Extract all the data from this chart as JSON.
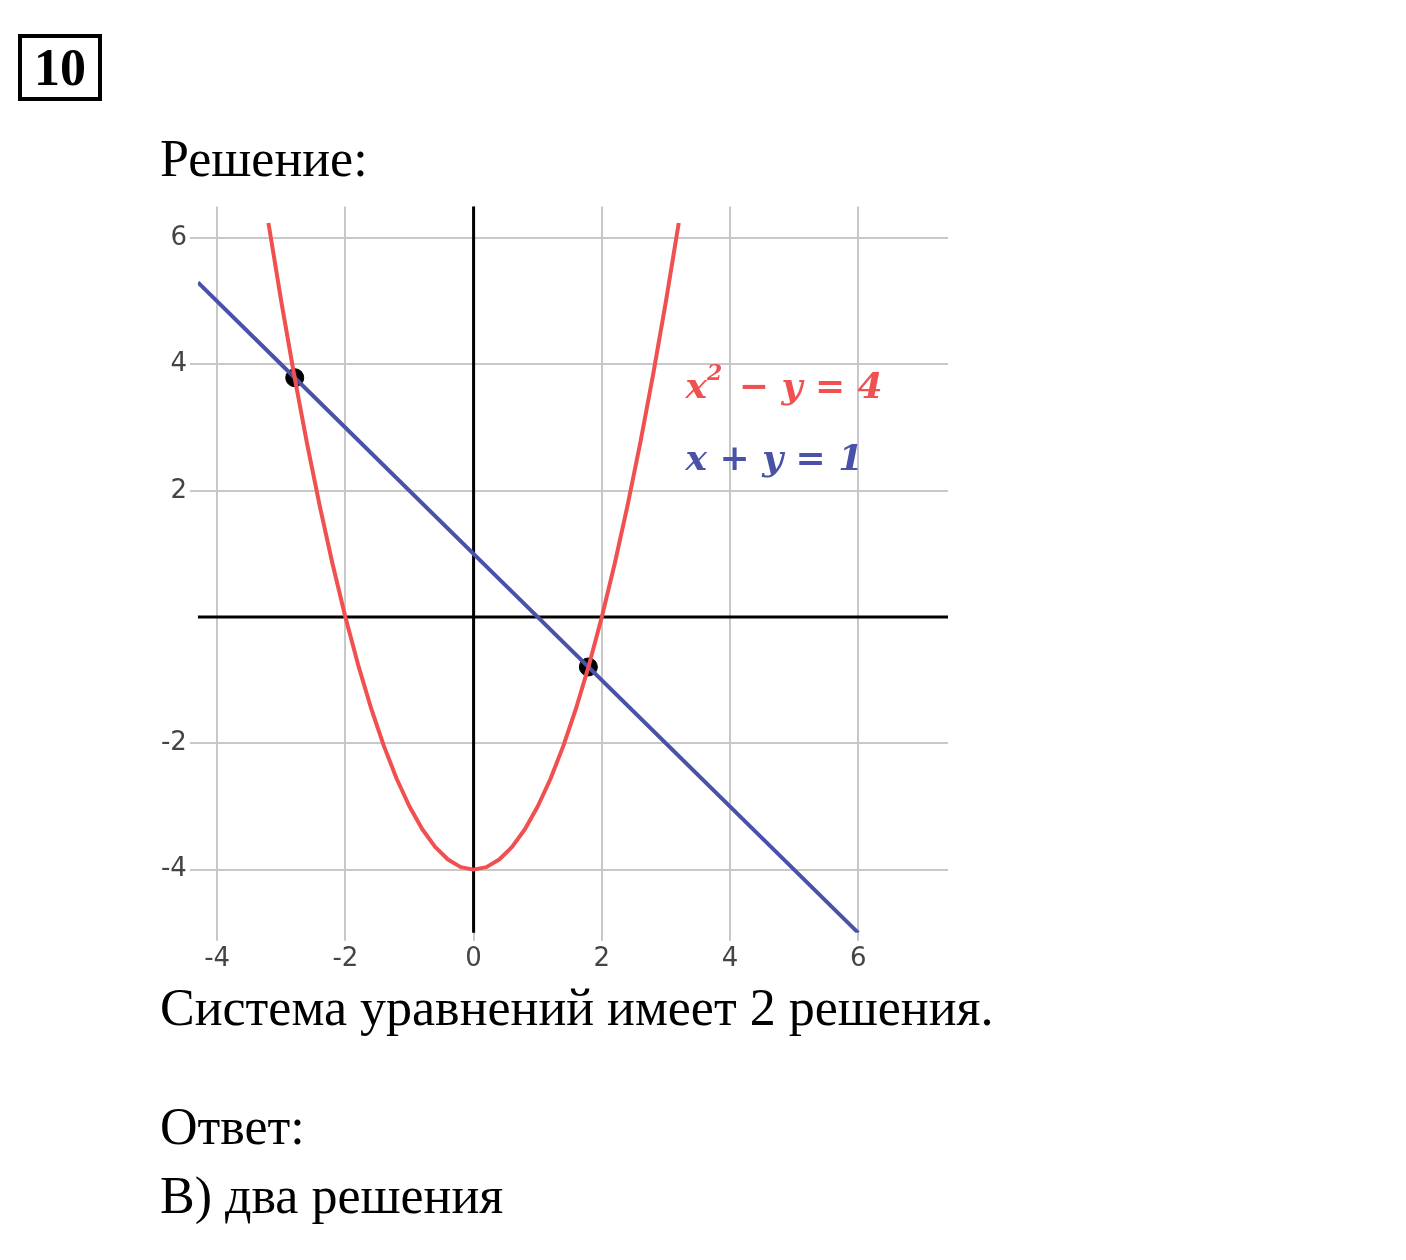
{
  "chart_data": {
    "type": "line",
    "title": "10",
    "subtitle": "Решение:",
    "xlim": [
      -4.3,
      7.4
    ],
    "ylim": [
      -5,
      6.5
    ],
    "xticks": [
      -4,
      -2,
      0,
      2,
      4,
      6
    ],
    "yticks": [
      -4,
      -2,
      2,
      4,
      6
    ],
    "grid": true,
    "series": [
      {
        "name": "x$^{2}$ − y = 4",
        "color": "#f05050",
        "type": "line",
        "x": [
          -3.2,
          -3,
          -2.8,
          -2.6,
          -2.4,
          -2.2,
          -2,
          -1.8,
          -1.6,
          -1.4,
          -1.2,
          -1,
          -0.8,
          -0.6,
          -0.4,
          -0.2,
          0,
          0.2,
          0.4,
          0.6,
          0.8,
          1,
          1.2,
          1.4,
          1.6,
          1.8,
          2,
          2.2,
          2.4,
          2.6,
          2.8,
          3,
          3.2
        ],
        "values": [
          6.24,
          5,
          3.84,
          2.76,
          1.76,
          0.84,
          0,
          -0.76,
          -1.44,
          -2.04,
          -2.56,
          -3,
          -3.36,
          -3.64,
          -3.84,
          -3.96,
          -4,
          -3.96,
          -3.84,
          -3.64,
          -3.36,
          -3,
          -2.56,
          -2.04,
          -1.44,
          -0.76,
          0,
          0.84,
          1.76,
          2.76,
          3.84,
          5,
          6.24
        ]
      },
      {
        "name": "x + y = 1",
        "color": "#4a52a8",
        "type": "line",
        "x": [
          -4.3,
          6
        ],
        "values": [
          5.3,
          -5
        ]
      },
      {
        "color": "#000000",
        "type": "scatter",
        "x": [
          -2.79,
          1.79
        ],
        "values": [
          3.79,
          -0.79
        ]
      }
    ],
    "annotations": [
      "Система уравнений имеет 2 решения.",
      "Ответ:",
      "В) два решения"
    ]
  }
}
